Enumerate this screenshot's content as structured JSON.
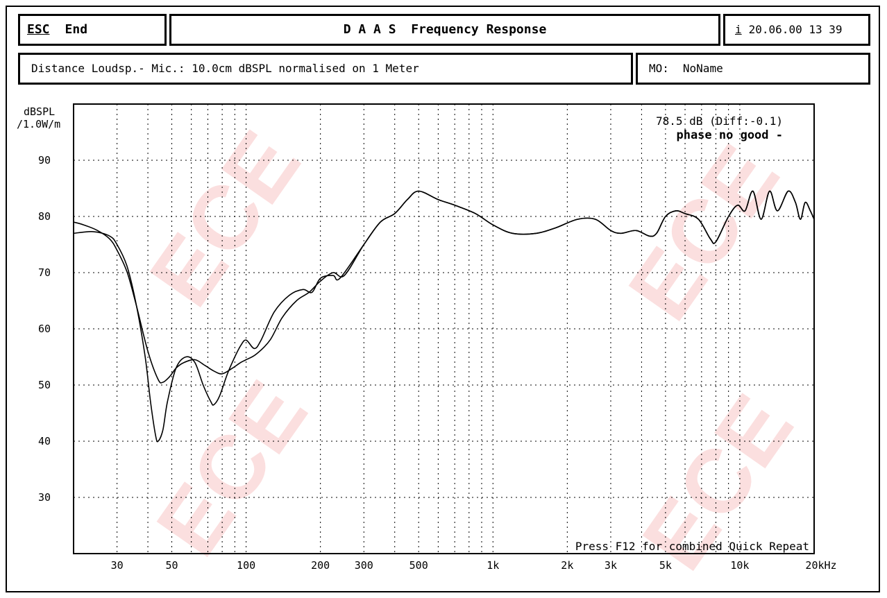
{
  "header": {
    "esc_key": "ESC",
    "esc_label": "End",
    "title": "D A A S  Frequency Response",
    "info_key": "i",
    "datetime": "20.06.00 13 39"
  },
  "subheader": {
    "info_text": "Distance Loudsp.- Mic.: 10.0cm dBSPL normalised on 1 Meter",
    "mo_key": "MO:",
    "mo_value": "NoName"
  },
  "watermark_text": "ECE",
  "chart_data": {
    "type": "line",
    "title": "D A A S  Frequency Response",
    "ylabel_line1": "dBSPL",
    "ylabel_line2": "/1.0W/m",
    "x_scale": "log",
    "xlim": [
      20,
      20000
    ],
    "ylim": [
      20,
      100
    ],
    "grid": true,
    "x_ticks": [
      {
        "value": 30,
        "label": "30"
      },
      {
        "value": 50,
        "label": "50"
      },
      {
        "value": 100,
        "label": "100"
      },
      {
        "value": 200,
        "label": "200"
      },
      {
        "value": 300,
        "label": "300"
      },
      {
        "value": 500,
        "label": "500"
      },
      {
        "value": 1000,
        "label": "1k"
      },
      {
        "value": 2000,
        "label": "2k"
      },
      {
        "value": 3000,
        "label": "3k"
      },
      {
        "value": 5000,
        "label": "5k"
      },
      {
        "value": 10000,
        "label": "10k"
      },
      {
        "value": 20000,
        "label": "20kHz"
      }
    ],
    "y_ticks": [
      30,
      40,
      50,
      60,
      70,
      80,
      90
    ],
    "annotations": {
      "level": "78.5 dB (Diff:-0.1)",
      "phase": "phase no good -",
      "footer": "Press F12 for combined Quick Repeat"
    },
    "series": [
      {
        "points": [
          [
            20,
            77
          ],
          [
            24,
            77.3
          ],
          [
            28,
            76.5
          ],
          [
            30,
            75
          ],
          [
            33,
            71
          ],
          [
            36,
            64
          ],
          [
            39,
            55
          ],
          [
            41,
            47
          ],
          [
            43,
            41
          ],
          [
            44,
            40
          ],
          [
            46,
            42
          ],
          [
            48,
            47
          ],
          [
            52,
            53
          ],
          [
            57,
            55
          ],
          [
            62,
            54
          ],
          [
            67,
            50
          ],
          [
            72,
            47
          ],
          [
            74,
            46.5
          ],
          [
            78,
            48
          ],
          [
            84,
            52
          ],
          [
            90,
            55
          ],
          [
            95,
            57
          ],
          [
            100,
            58
          ],
          [
            108,
            56.5
          ],
          [
            115,
            58
          ],
          [
            130,
            63
          ],
          [
            150,
            66
          ],
          [
            170,
            67
          ],
          [
            185,
            66.5
          ],
          [
            200,
            69
          ],
          [
            225,
            69.5
          ],
          [
            240,
            69
          ],
          [
            300,
            75
          ],
          [
            350,
            79
          ],
          [
            400,
            80.5
          ],
          [
            450,
            83
          ],
          [
            500,
            84.5
          ],
          [
            600,
            83
          ],
          [
            700,
            82
          ],
          [
            850,
            80.5
          ],
          [
            1000,
            78.5
          ],
          [
            1200,
            77
          ],
          [
            1500,
            77
          ],
          [
            1800,
            78
          ],
          [
            2200,
            79.5
          ],
          [
            2600,
            79.5
          ],
          [
            3000,
            77.5
          ],
          [
            3300,
            77
          ],
          [
            3800,
            77.5
          ],
          [
            4300,
            76.5
          ],
          [
            4600,
            77
          ],
          [
            5000,
            80
          ],
          [
            5500,
            81
          ],
          [
            6000,
            80.5
          ],
          [
            6800,
            79.5
          ],
          [
            7600,
            76
          ],
          [
            8000,
            75.5
          ],
          [
            9000,
            80
          ],
          [
            9800,
            82
          ],
          [
            10500,
            81
          ],
          [
            11300,
            84.5
          ],
          [
            12200,
            79.5
          ],
          [
            13200,
            84.5
          ],
          [
            14200,
            81
          ],
          [
            15700,
            84.5
          ],
          [
            16800,
            82.5
          ],
          [
            17600,
            79.5
          ],
          [
            18400,
            82.5
          ],
          [
            19300,
            81
          ],
          [
            20000,
            79.5
          ]
        ]
      },
      {
        "points": [
          [
            20,
            79
          ],
          [
            22,
            78.5
          ],
          [
            25,
            77.5
          ],
          [
            28,
            76
          ],
          [
            30,
            74
          ],
          [
            33,
            70
          ],
          [
            36,
            64
          ],
          [
            40,
            56
          ],
          [
            44,
            51
          ],
          [
            46,
            50.5
          ],
          [
            49,
            51.5
          ],
          [
            52,
            53
          ],
          [
            56,
            54
          ],
          [
            62,
            54.5
          ],
          [
            68,
            53.5
          ],
          [
            74,
            52.5
          ],
          [
            80,
            52
          ],
          [
            88,
            53
          ],
          [
            95,
            54
          ],
          [
            100,
            54.5
          ],
          [
            110,
            55.5
          ],
          [
            125,
            58
          ],
          [
            140,
            62
          ],
          [
            160,
            65
          ],
          [
            180,
            66.5
          ],
          [
            200,
            68.5
          ],
          [
            225,
            70
          ],
          [
            250,
            69.5
          ],
          [
            300,
            75
          ],
          [
            350,
            79
          ],
          [
            400,
            80.5
          ],
          [
            450,
            83
          ],
          [
            500,
            84.5
          ],
          [
            600,
            83
          ],
          [
            700,
            82
          ],
          [
            850,
            80.5
          ],
          [
            1000,
            78.5
          ],
          [
            1200,
            77
          ],
          [
            1500,
            77
          ],
          [
            1800,
            78
          ],
          [
            2200,
            79.5
          ],
          [
            2600,
            79.5
          ],
          [
            3000,
            77.5
          ],
          [
            3300,
            77
          ],
          [
            3800,
            77.5
          ],
          [
            4300,
            76.5
          ],
          [
            4600,
            77
          ],
          [
            5000,
            80
          ],
          [
            5500,
            81
          ],
          [
            6000,
            80.5
          ],
          [
            6800,
            79.5
          ],
          [
            7600,
            76
          ],
          [
            8000,
            75.5
          ],
          [
            9000,
            80
          ],
          [
            9800,
            82
          ],
          [
            10500,
            81
          ],
          [
            11300,
            84.5
          ],
          [
            12200,
            79.5
          ],
          [
            13200,
            84.5
          ],
          [
            14200,
            81
          ],
          [
            15700,
            84.5
          ],
          [
            16800,
            82.5
          ],
          [
            17600,
            79.5
          ],
          [
            18400,
            82.5
          ],
          [
            19300,
            81
          ],
          [
            20000,
            79.5
          ]
        ]
      }
    ]
  }
}
